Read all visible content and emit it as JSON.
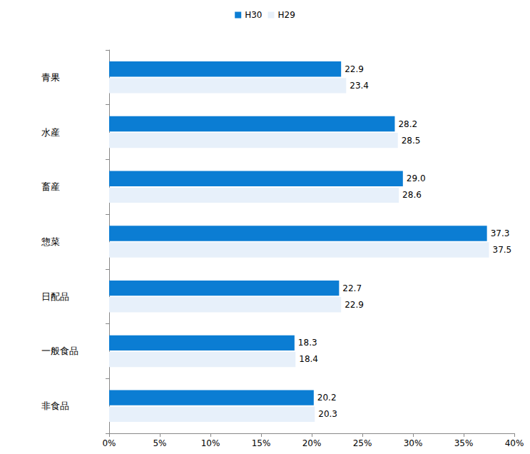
{
  "chart_data": {
    "type": "bar",
    "orientation": "horizontal",
    "categories": [
      "青果",
      "水産",
      "畜産",
      "惣菜",
      "日配品",
      "一般食品",
      "非食品"
    ],
    "series": [
      {
        "name": "H30",
        "color": "#0b7dd3",
        "values": [
          22.9,
          28.2,
          29.0,
          37.3,
          22.7,
          18.3,
          20.2
        ],
        "value_labels": [
          "22.9",
          "28.2",
          "29.0",
          "37.3",
          "22.7",
          "18.3",
          "20.2"
        ]
      },
      {
        "name": "H29",
        "color": "#e7f0fa",
        "values": [
          23.4,
          28.5,
          28.6,
          37.5,
          22.9,
          18.4,
          20.3
        ],
        "value_labels": [
          "23.4",
          "28.5",
          "28.6",
          "37.5",
          "22.9",
          "18.4",
          "20.3"
        ]
      }
    ],
    "xlim": [
      0,
      40
    ],
    "xticks": [
      {
        "value": 0,
        "label": "0%"
      },
      {
        "value": 5,
        "label": "5%"
      },
      {
        "value": 10,
        "label": "10%"
      },
      {
        "value": 15,
        "label": "15%"
      },
      {
        "value": 20,
        "label": "20%"
      },
      {
        "value": 25,
        "label": "25%"
      },
      {
        "value": 30,
        "label": "30%"
      },
      {
        "value": 35,
        "label": "35%"
      },
      {
        "value": 40,
        "label": "40%"
      }
    ],
    "grid": false,
    "legend": "top",
    "data_labels": true
  }
}
